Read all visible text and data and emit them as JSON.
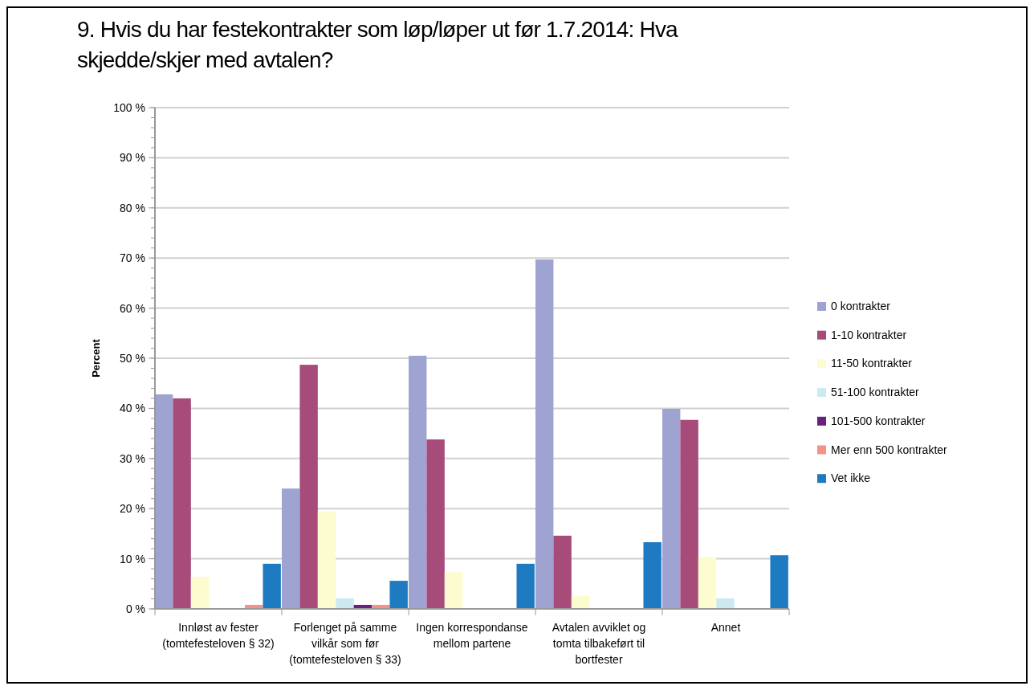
{
  "chart_data": {
    "type": "bar",
    "title": "9. Hvis du har festekontrakter som løp/løper ut før 1.7.2014: Hva skjedde/skjer med avtalen?",
    "ylabel": "Percent",
    "categories": [
      "Innløst av fester (tomtefesteloven § 32)",
      "Forlenget på samme vilkår som før (tomtefesteloven § 33)",
      "Ingen korrespondanse mellom partene",
      "Avtalen avviklet og tomta tilbakeført til bortfester",
      "Annet"
    ],
    "series": [
      {
        "name": "0 kontrakter",
        "color": "#9fa3d1",
        "values": [
          42.8,
          24.0,
          50.5,
          69.7,
          39.9
        ]
      },
      {
        "name": "1-10 kontrakter",
        "color": "#a64b7a",
        "values": [
          42.0,
          48.7,
          33.8,
          14.6,
          37.7
        ]
      },
      {
        "name": "11-50 kontrakter",
        "color": "#fdfbd0",
        "values": [
          6.4,
          19.4,
          7.4,
          2.6,
          10.3
        ]
      },
      {
        "name": "51-100 kontrakter",
        "color": "#cde9f0",
        "values": [
          0,
          2.1,
          0,
          0,
          2.1
        ]
      },
      {
        "name": "101-500 kontrakter",
        "color": "#6b1f7e",
        "values": [
          0,
          0.8,
          0,
          0,
          0
        ]
      },
      {
        "name": "Mer enn 500 kontrakter",
        "color": "#f4928a",
        "values": [
          0.8,
          0.8,
          0,
          0,
          0
        ]
      },
      {
        "name": "Vet ikke",
        "color": "#1f7bc1",
        "values": [
          9.0,
          5.6,
          9.0,
          13.3,
          10.7
        ]
      }
    ],
    "ylim": [
      0,
      100
    ],
    "yticks": [
      {
        "value": 0,
        "label": "0 %"
      },
      {
        "value": 10,
        "label": "10 %"
      },
      {
        "value": 20,
        "label": "20 %"
      },
      {
        "value": 30,
        "label": "30 %"
      },
      {
        "value": 40,
        "label": "40 %"
      },
      {
        "value": 50,
        "label": "50 %"
      },
      {
        "value": 60,
        "label": "60 %"
      },
      {
        "value": 70,
        "label": "70 %"
      },
      {
        "value": 80,
        "label": "80 %"
      },
      {
        "value": 90,
        "label": "90 %"
      },
      {
        "value": 100,
        "label": "100 %"
      }
    ],
    "grid": "y",
    "legend": "right"
  }
}
